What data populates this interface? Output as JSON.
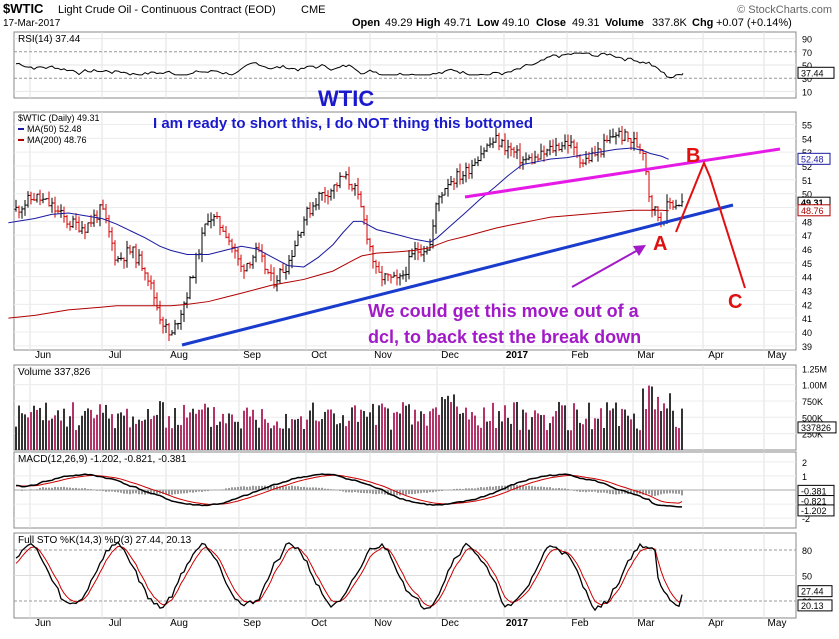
{
  "header": {
    "symbol": "$WTIC",
    "description": "Light Crude Oil - Continuous Contract (EOD)",
    "exchange": "CME",
    "date": "17-Mar-2017",
    "open_label": "Open",
    "open": "49.29",
    "high_label": "High",
    "high": "49.71",
    "low_label": "Low",
    "low": "49.10",
    "close_label": "Close",
    "close": "49.31",
    "volume_label": "Volume",
    "volume": "337.8K",
    "chg_label": "Chg",
    "chg": "+0.07 (+0.14%)",
    "watermark": "© StockCharts.com"
  },
  "annotations": {
    "title": "WTIC",
    "short_note_1": "I am ready to short this, I do ",
    "short_note_bold": "NOT",
    "short_note_2": " thing this bottomed",
    "move_note_1": "We could get this move out of a",
    "move_note_2": "dcl, to back test the break down",
    "label_a": "A",
    "label_b": "B",
    "label_c": "C"
  },
  "x_axis": {
    "months": [
      "Jun",
      "Jul",
      "Aug",
      "Sep",
      "Oct",
      "Nov",
      "Dec",
      "2017",
      "Feb",
      "Mar",
      "Apr",
      "May"
    ]
  },
  "colors": {
    "price_bar_up": "#000000",
    "price_bar_down": "#d40000",
    "ma50": "#1a1aa0",
    "ma200": "#b00000",
    "trendline": "#1a3ccc",
    "resistance_line": "#e61ae6",
    "abc_path": "#e01010",
    "annotation_text": "#1a1acc",
    "move_text": "#a21ac8",
    "volume_up": "#333333",
    "volume_down": "#b4346a",
    "macd": "#000000",
    "signal": "#cc0000",
    "histogram": "#9a9a9a",
    "sto_k": "#000000",
    "sto_d": "#cc0000"
  },
  "chart_data": [
    {
      "type": "line",
      "panel": "rsi",
      "label": "RSI(14) 37.44",
      "yticks": [
        10,
        30,
        50,
        70,
        90
      ],
      "last_value_label": "37.44",
      "last_value": 37.44,
      "ylim": [
        0,
        100
      ]
    },
    {
      "type": "bar",
      "panel": "price",
      "label": "$WTIC (Daily) 49.31",
      "legend": [
        {
          "name": "$WTIC (Daily) 49.31"
        },
        {
          "name": "MA(50) 52.48"
        },
        {
          "name": "MA(200) 48.76"
        }
      ],
      "yticks": [
        39,
        40,
        41,
        42,
        43,
        44,
        45,
        46,
        47,
        48,
        49,
        50,
        51,
        52,
        53,
        54,
        55
      ],
      "ylim": [
        38.7,
        55.9
      ],
      "tags": [
        {
          "text": "52.48",
          "value": 52.48
        },
        {
          "text": "49.31",
          "value": 49.31
        },
        {
          "text": "48.76",
          "value": 48.76
        }
      ],
      "close": 49.31,
      "ma50": 52.48,
      "ma200": 48.76,
      "x": [
        "2016-05-23",
        "2016-06-03",
        "2016-06-10",
        "2016-06-17",
        "2016-06-24",
        "2016-07-01",
        "2016-07-08",
        "2016-07-15",
        "2016-07-22",
        "2016-07-29",
        "2016-08-03",
        "2016-08-10",
        "2016-08-19",
        "2016-08-26",
        "2016-09-02",
        "2016-09-09",
        "2016-09-16",
        "2016-09-23",
        "2016-09-30",
        "2016-10-07",
        "2016-10-14",
        "2016-10-19",
        "2016-10-24",
        "2016-10-28",
        "2016-11-04",
        "2016-11-14",
        "2016-11-21",
        "2016-11-28",
        "2016-12-01",
        "2016-12-06",
        "2016-12-14",
        "2016-12-21",
        "2016-12-28",
        "2017-01-03",
        "2017-01-10",
        "2017-01-17",
        "2017-01-24",
        "2017-02-01",
        "2017-02-08",
        "2017-02-15",
        "2017-02-22",
        "2017-03-01",
        "2017-03-06",
        "2017-03-09",
        "2017-03-14",
        "2017-03-17"
      ],
      "values": [
        48.5,
        49.8,
        49.1,
        47.9,
        47.6,
        48.9,
        45.2,
        45.9,
        44.6,
        41.2,
        39.5,
        42.8,
        48.5,
        47.4,
        44.6,
        45.8,
        43.6,
        45.0,
        48.2,
        49.8,
        50.4,
        51.2,
        50.6,
        48.7,
        44.1,
        43.6,
        45.8,
        46.3,
        49.5,
        50.9,
        51.5,
        53.0,
        53.9,
        53.3,
        52.4,
        52.5,
        53.2,
        53.8,
        52.3,
        53.1,
        54.4,
        53.8,
        53.2,
        49.3,
        48.0,
        49.31
      ],
      "ma50_values": [
        47.9,
        48.2,
        48.5,
        48.6,
        48.4,
        48.2,
        47.8,
        47.3,
        46.8,
        46.2,
        45.9,
        45.6,
        45.6,
        45.9,
        46.2,
        46.0,
        45.4,
        44.8,
        44.7,
        45.4,
        46.3,
        47.2,
        48.0,
        48.0,
        47.4,
        47.0,
        46.7,
        46.5,
        46.8,
        47.5,
        48.6,
        49.6,
        50.5,
        51.3,
        52.1,
        52.3,
        52.5,
        52.6,
        52.8,
        53.0,
        53.2,
        53.3,
        53.1,
        52.9,
        52.7,
        52.48
      ],
      "ma200_values": [
        41.0,
        41.2,
        41.4,
        41.6,
        41.7,
        41.8,
        41.9,
        41.9,
        41.9,
        41.9,
        41.9,
        42.0,
        42.2,
        42.5,
        42.8,
        43.1,
        43.4,
        43.6,
        43.8,
        44.1,
        44.4,
        44.8,
        45.2,
        45.5,
        45.7,
        45.8,
        45.9,
        46.1,
        46.3,
        46.6,
        46.9,
        47.2,
        47.5,
        47.7,
        47.9,
        48.1,
        48.3,
        48.4,
        48.5,
        48.6,
        48.7,
        48.8,
        48.8,
        48.8,
        48.8,
        48.76
      ]
    },
    {
      "type": "bar",
      "panel": "volume",
      "label": "Volume 337,826",
      "yticks": [
        "1.25M",
        "1.00M",
        "750K",
        "500K",
        "250K"
      ],
      "last_value_label": "337826",
      "last_value": 337826,
      "ylim": [
        0,
        1300000
      ]
    },
    {
      "type": "line",
      "panel": "macd",
      "label": "MACD(12,26,9) -1.202, -0.821, -0.381",
      "series": [
        {
          "name": "MACD(12,26,9)",
          "last": -1.202
        },
        {
          "name": "signal",
          "last": -0.821
        },
        {
          "name": "histogram",
          "last": -0.381
        }
      ],
      "yticks": [
        2,
        1,
        0,
        -1,
        -2
      ],
      "tags": [
        "-0.381",
        "-0.821",
        "-1.202"
      ],
      "ylim": [
        -2.7,
        2.7
      ]
    },
    {
      "type": "line",
      "panel": "stochastic",
      "label": "Full STO %K(14,3) %D(3) 27.44, 20.13",
      "series": [
        {
          "name": "%K(14,3)",
          "last": 27.44
        },
        {
          "name": "%D(3)",
          "last": 20.13
        }
      ],
      "yticks": [
        80,
        50,
        20
      ],
      "tags": [
        "27.44",
        "20.13"
      ],
      "ylim": [
        0,
        100
      ]
    }
  ]
}
